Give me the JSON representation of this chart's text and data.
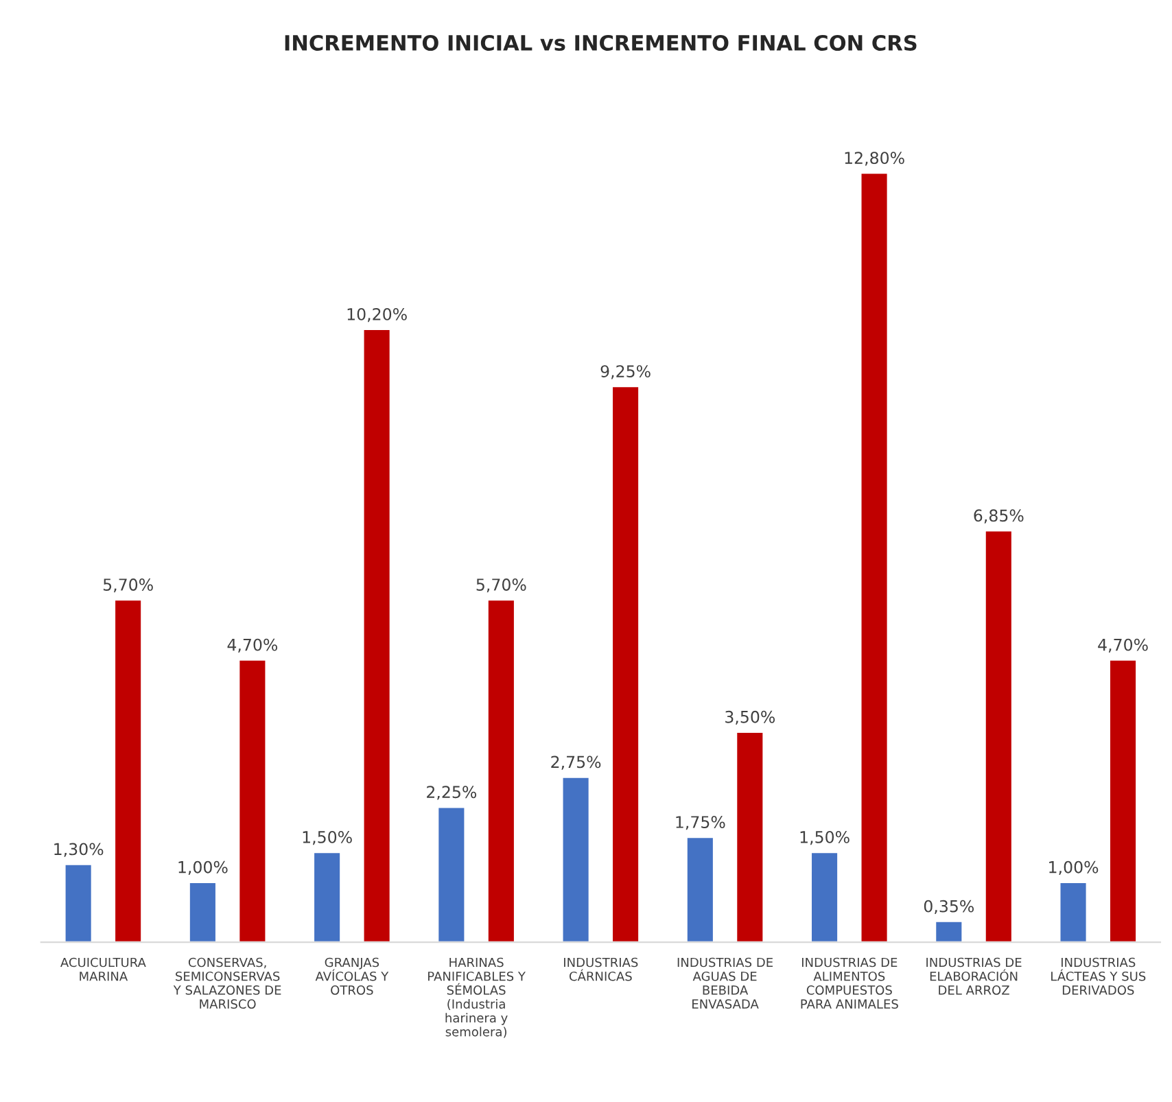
{
  "chart_data": {
    "type": "bar",
    "title": "INCREMENTO INICIAL vs INCREMENTO FINAL CON CRS",
    "categories": [
      "ACUICULTURA\nMARINA",
      "CONSERVAS,\nSEMICONSERVAS\nY SALAZONES DE\nMARISCO",
      "GRANJAS\nAVÍCOLAS Y\nOTROS",
      "HARINAS\nPANIFICABLES Y\nSÉMOLAS\n(Industria\nharinera y\nsemolera)",
      "INDUSTRIAS\nCÁRNICAS",
      "INDUSTRIAS DE\nAGUAS DE\nBEBIDA\nENVASADA",
      "INDUSTRIAS DE\nALIMENTOS\nCOMPUESTOS\nPARA ANIMALES",
      "INDUSTRIAS DE\nELABORACIÓN\nDEL ARROZ",
      "INDUSTRIAS\nLÁCTEAS Y SUS\nDERIVADOS"
    ],
    "series": [
      {
        "color": "#4472c4",
        "values": [
          1.3,
          1.0,
          1.5,
          2.25,
          2.75,
          1.75,
          1.5,
          0.35,
          1.0
        ],
        "value_labels": [
          "1,30%",
          "1,00%",
          "1,50%",
          "2,25%",
          "2,75%",
          "1,75%",
          "1,50%",
          "0,35%",
          "1,00%"
        ]
      },
      {
        "color": "#c00000",
        "values": [
          5.7,
          4.7,
          10.2,
          5.7,
          9.25,
          3.5,
          12.8,
          6.85,
          4.7
        ],
        "value_labels": [
          "5,70%",
          "4,70%",
          "10,20%",
          "5,70%",
          "9,25%",
          "3,50%",
          "12,80%",
          "6,85%",
          "4,70%"
        ]
      }
    ]
  }
}
